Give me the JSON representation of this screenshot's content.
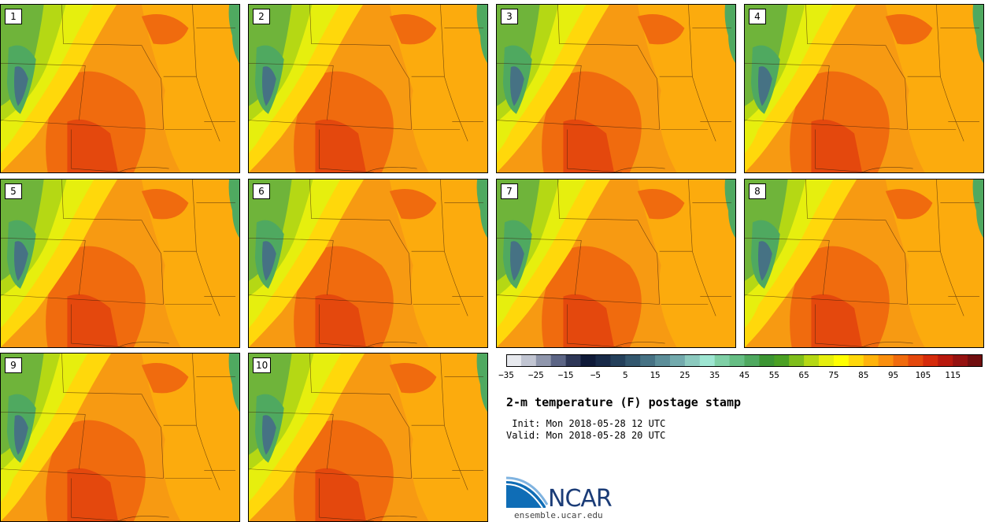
{
  "panels": [
    {
      "label": "1"
    },
    {
      "label": "2"
    },
    {
      "label": "3"
    },
    {
      "label": "4"
    },
    {
      "label": "5"
    },
    {
      "label": "6"
    },
    {
      "label": "7"
    },
    {
      "label": "8"
    },
    {
      "label": "9"
    },
    {
      "label": "10"
    }
  ],
  "colorbar": {
    "colors": [
      "#e7e9ee",
      "#c1c5d2",
      "#8f96ac",
      "#5c6585",
      "#2d3656",
      "#0f1a38",
      "#182a48",
      "#24405b",
      "#33576e",
      "#467284",
      "#5c8e99",
      "#73aaad",
      "#8ccabf",
      "#9ee6d2",
      "#7fd0a6",
      "#66be84",
      "#4fa960",
      "#3c9533",
      "#4ba024",
      "#7fbe1c",
      "#b5d814",
      "#e6ef0e",
      "#ffff00",
      "#ffd80b",
      "#ffb30b",
      "#fa8f0e",
      "#f06b0e",
      "#e4480d",
      "#d52b0b",
      "#b8190d",
      "#951210",
      "#700e0f"
    ],
    "ticks": [
      "−35",
      "−25",
      "−15",
      "−5",
      "5",
      "15",
      "25",
      "35",
      "45",
      "55",
      "65",
      "75",
      "85",
      "95",
      "105",
      "115"
    ]
  },
  "title": "2-m temperature (F) postage stamp",
  "init": " Init: Mon 2018-05-28 12 UTC",
  "valid": "Valid: Mon 2018-05-28 20 UTC",
  "logo": {
    "text": "NCAR",
    "site": "ensemble.ucar.edu"
  }
}
